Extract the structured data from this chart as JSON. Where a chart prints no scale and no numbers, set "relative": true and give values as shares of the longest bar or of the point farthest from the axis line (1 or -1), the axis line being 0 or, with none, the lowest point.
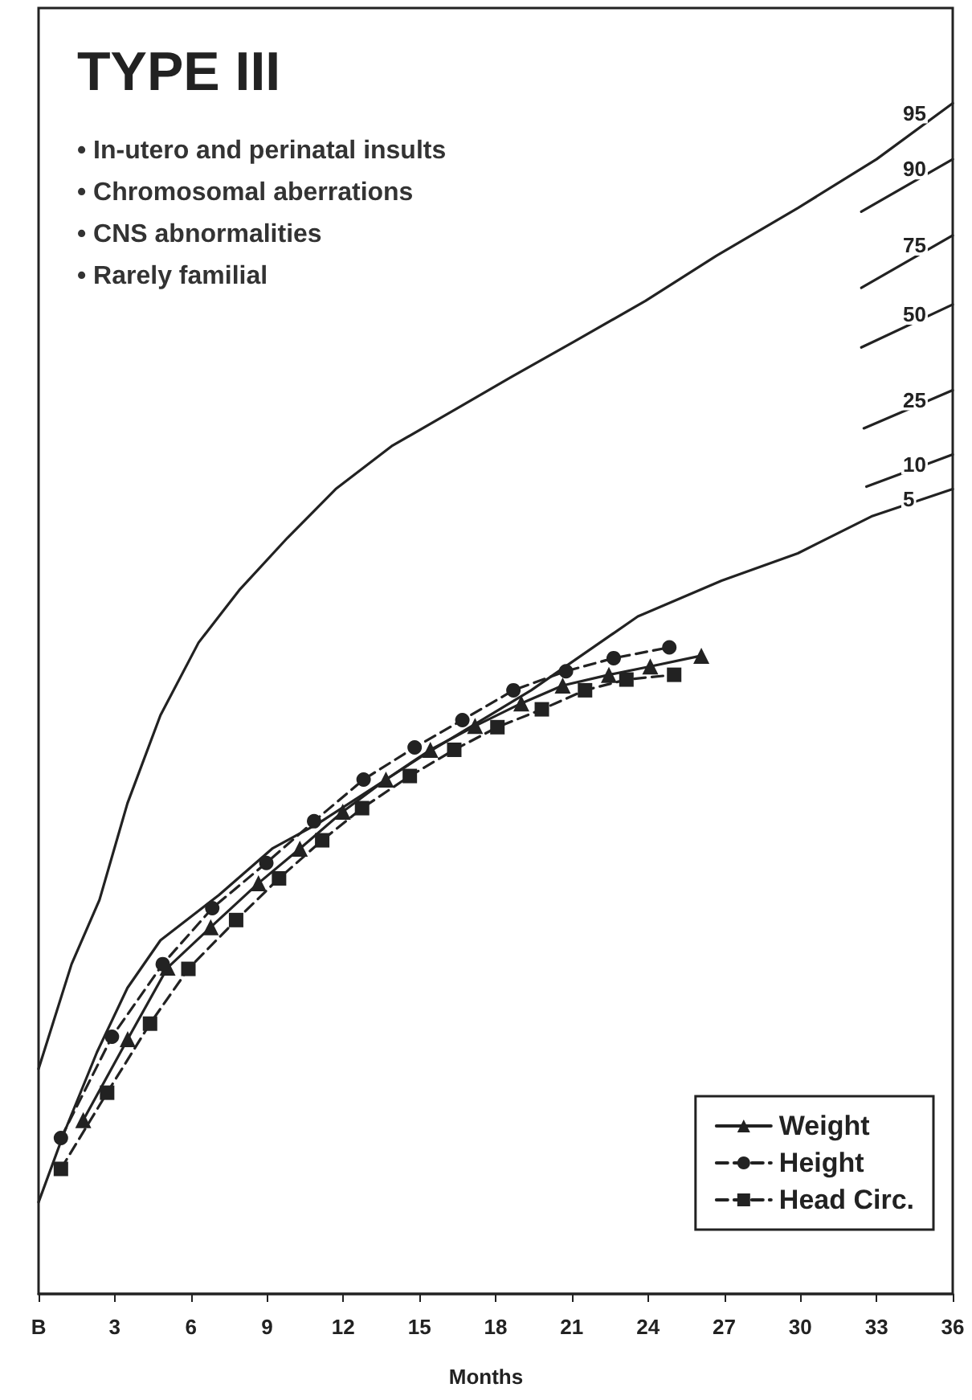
{
  "chart_data": {
    "type": "line",
    "title": "TYPE III",
    "xlabel": "Months",
    "relative": true,
    "legend": "bottom right",
    "grid": false,
    "annotations": [
      "• In-utero and perinatal insults",
      "• Chromosomal aberrations",
      "• CNS abnormalities",
      "• Rarely familial"
    ],
    "xlim": [
      0,
      36
    ],
    "xticks": [
      {
        "value": 0,
        "label": "B"
      },
      3,
      6,
      9,
      12,
      15,
      18,
      21,
      24,
      27,
      30,
      33,
      36
    ],
    "series": [
      {
        "name": "95",
        "color": "#222222",
        "marker": "none",
        "line_style": "solid",
        "x": [
          0,
          1.3,
          2.4,
          3.5,
          4.8,
          6.3,
          7.9,
          9.8,
          11.7,
          13.9,
          16.1,
          18.6,
          21.1,
          23.9,
          26.7,
          29.9,
          33.0,
          36
        ],
        "values": [
          0.189,
          0.277,
          0.331,
          0.412,
          0.486,
          0.547,
          0.591,
          0.635,
          0.676,
          0.712,
          0.739,
          0.77,
          0.8,
          0.834,
          0.872,
          0.912,
          0.953,
          1
        ]
      },
      {
        "name": "90",
        "color": "#222222",
        "marker": "none",
        "line_style": "solid",
        "x": [
          32.4,
          36
        ],
        "values": [
          0.909,
          0.953
        ]
      },
      {
        "name": "75",
        "color": "#222222",
        "marker": "none",
        "line_style": "solid",
        "x": [
          32.4,
          36
        ],
        "values": [
          0.845,
          0.889
        ]
      },
      {
        "name": "50",
        "color": "#222222",
        "marker": "none",
        "line_style": "solid",
        "x": [
          32.4,
          36
        ],
        "values": [
          0.795,
          0.831
        ]
      },
      {
        "name": "25",
        "color": "#222222",
        "marker": "none",
        "line_style": "solid",
        "x": [
          32.5,
          36
        ],
        "values": [
          0.727,
          0.759
        ]
      },
      {
        "name": "10",
        "color": "#222222",
        "marker": "none",
        "line_style": "solid",
        "x": [
          32.6,
          36
        ],
        "values": [
          0.678,
          0.705
        ]
      },
      {
        "name": "5",
        "color": "#222222",
        "marker": "none",
        "line_style": "solid",
        "x": [
          0,
          1.0,
          2.3,
          3.5,
          4.8,
          7.1,
          9.2,
          11.0,
          15.2,
          19.4,
          23.6,
          26.9,
          29.9,
          32.8,
          36
        ],
        "values": [
          0.077,
          0.135,
          0.203,
          0.257,
          0.297,
          0.335,
          0.374,
          0.395,
          0.453,
          0.507,
          0.569,
          0.599,
          0.622,
          0.653,
          0.676
        ]
      },
      {
        "name": "Weight",
        "color": "#222222",
        "marker": "triangle",
        "line_style": "solid",
        "x": [
          1.76,
          3.51,
          5.08,
          6.78,
          8.66,
          10.29,
          11.98,
          13.68,
          15.43,
          17.19,
          19.01,
          20.64,
          22.46,
          24.09,
          26.1
        ],
        "values": [
          0.146,
          0.214,
          0.274,
          0.308,
          0.345,
          0.374,
          0.405,
          0.432,
          0.457,
          0.477,
          0.496,
          0.511,
          0.52,
          0.527,
          0.536
        ]
      },
      {
        "name": "Height",
        "color": "#222222",
        "marker": "circle",
        "line_style": "dashed",
        "x": [
          0.88,
          2.89,
          4.89,
          6.84,
          8.97,
          10.85,
          12.8,
          14.81,
          16.69,
          18.7,
          20.77,
          22.65,
          24.84
        ],
        "values": [
          0.131,
          0.216,
          0.277,
          0.324,
          0.362,
          0.397,
          0.432,
          0.459,
          0.482,
          0.507,
          0.523,
          0.534,
          0.543
        ]
      },
      {
        "name": "Head Circ.",
        "color": "#222222",
        "marker": "square",
        "line_style": "dashed",
        "x": [
          0.88,
          2.7,
          4.39,
          5.9,
          7.78,
          9.47,
          11.17,
          12.74,
          14.62,
          16.37,
          18.07,
          19.82,
          21.52,
          23.15,
          25.03
        ],
        "values": [
          0.105,
          0.169,
          0.227,
          0.273,
          0.314,
          0.349,
          0.381,
          0.408,
          0.435,
          0.457,
          0.476,
          0.491,
          0.507,
          0.516,
          0.52
        ]
      }
    ]
  }
}
